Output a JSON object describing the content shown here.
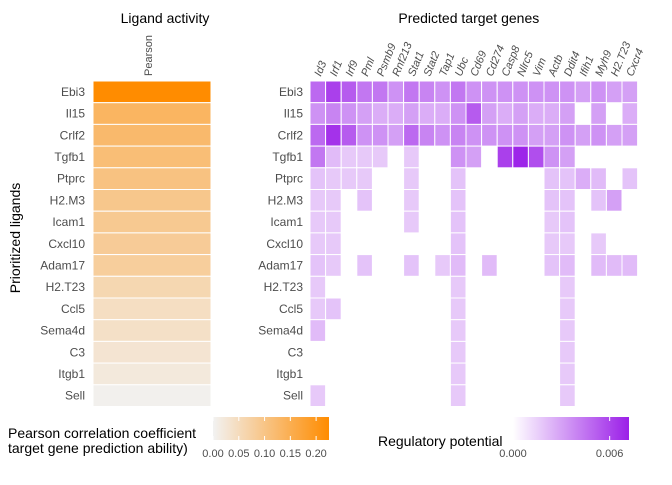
{
  "chart_data": [
    {
      "type": "heatmap",
      "title": "Ligand activity",
      "column_label": "Pearson",
      "ylabel": "Prioritized ligands",
      "rows": [
        "Ebi3",
        "Il15",
        "Crlf2",
        "Tgfb1",
        "Ptprc",
        "H2.M3",
        "Icam1",
        "Cxcl10",
        "Adam17",
        "H2.T23",
        "Ccl5",
        "Sema4d",
        "C3",
        "Itgb1",
        "Sell"
      ],
      "values": [
        0.225,
        0.135,
        0.125,
        0.115,
        0.105,
        0.095,
        0.09,
        0.085,
        0.08,
        0.06,
        0.045,
        0.04,
        0.03,
        0.02,
        0.005
      ],
      "legend": {
        "title": "Pearson correlation coefficient\ntarget gene prediction ability)",
        "ticks": [
          0.0,
          0.05,
          0.1,
          0.15,
          0.2
        ],
        "tick_labels": [
          "0.00",
          "0.05",
          "0.10",
          "0.15",
          "0.20"
        ],
        "range": [
          0.0,
          0.225
        ],
        "color_low": "#f2f2f2",
        "color_high": "#ff8c00"
      }
    },
    {
      "type": "heatmap",
      "title": "Predicted target genes",
      "rows": [
        "Ebi3",
        "Il15",
        "Crlf2",
        "Tgfb1",
        "Ptprc",
        "H2.M3",
        "Icam1",
        "Cxcl10",
        "Adam17",
        "H2.T23",
        "Ccl5",
        "Sema4d",
        "C3",
        "Itgb1",
        "Sell"
      ],
      "columns": [
        "Id3",
        "Irf1",
        "Irf9",
        "Pml",
        "Psmb9",
        "Rnf213",
        "Stat1",
        "Stat2",
        "Tap1",
        "Ubc",
        "Cd69",
        "Cd274",
        "Casp8",
        "Nlrc5",
        "Vim",
        "Actb",
        "Ddit4",
        "Ifih1",
        "Myh9",
        "H2.T23",
        "Cxcr4"
      ],
      "matrix": [
        [
          0.0045,
          0.006,
          0.005,
          0.004,
          0.004,
          0.003,
          0.004,
          0.0035,
          0.003,
          0.004,
          0.003,
          0.003,
          0.003,
          0.003,
          0.003,
          0.003,
          0.003,
          0.0025,
          0.003,
          0.0025,
          0.0025
        ],
        [
          0.003,
          0.0035,
          0.003,
          0.0025,
          0.002,
          0.002,
          0.0025,
          0.002,
          0.002,
          0.003,
          0.005,
          0.0025,
          0.002,
          0.0025,
          0.002,
          0.002,
          0.0025,
          0,
          0.0025,
          0,
          0.002
        ],
        [
          0.0045,
          0.0065,
          0.005,
          0.003,
          0.003,
          0.0025,
          0.0045,
          0.0035,
          0.003,
          0.0035,
          0.003,
          0.003,
          0.003,
          0.003,
          0.0025,
          0.0025,
          0.003,
          0.0025,
          0.003,
          0.0025,
          0.0025
        ],
        [
          0.004,
          0.0015,
          0.001,
          0.001,
          0.001,
          0,
          0.001,
          0,
          0,
          0.003,
          0.0025,
          0,
          0.006,
          0.007,
          0.0055,
          0.003,
          0.0025,
          0,
          0,
          0,
          0
        ],
        [
          0.0012,
          0.001,
          0.001,
          0.001,
          0,
          0,
          0.001,
          0,
          0,
          0.0012,
          0,
          0,
          0,
          0,
          0,
          0.0012,
          0.0012,
          0.002,
          0.0015,
          0,
          0.0012
        ],
        [
          0.001,
          0.001,
          0,
          0.0012,
          0,
          0,
          0.001,
          0,
          0,
          0.0012,
          0,
          0,
          0,
          0,
          0,
          0.0012,
          0.0012,
          0,
          0.0012,
          0.0025,
          0
        ],
        [
          0.001,
          0.001,
          0,
          0,
          0,
          0,
          0.001,
          0,
          0,
          0.0012,
          0,
          0,
          0,
          0,
          0,
          0.001,
          0.0012,
          0,
          0,
          0,
          0
        ],
        [
          0.001,
          0.001,
          0,
          0,
          0,
          0,
          0,
          0,
          0,
          0.0012,
          0,
          0,
          0,
          0,
          0,
          0.001,
          0.001,
          0,
          0.001,
          0,
          0
        ],
        [
          0.0012,
          0.001,
          0,
          0.0012,
          0,
          0,
          0.0012,
          0,
          0.001,
          0.0015,
          0,
          0.0015,
          0,
          0,
          0,
          0.0012,
          0.0015,
          0,
          0.0015,
          0.0015,
          0.0015
        ],
        [
          0.001,
          0,
          0,
          0,
          0,
          0,
          0,
          0,
          0,
          0.001,
          0,
          0,
          0,
          0,
          0,
          0,
          0.001,
          0,
          0,
          0,
          0
        ],
        [
          0.001,
          0.0012,
          0,
          0,
          0,
          0,
          0,
          0,
          0,
          0.001,
          0,
          0,
          0,
          0,
          0,
          0,
          0.001,
          0,
          0,
          0,
          0
        ],
        [
          0.0015,
          0,
          0,
          0,
          0,
          0,
          0,
          0,
          0,
          0.001,
          0,
          0,
          0,
          0,
          0,
          0,
          0.001,
          0,
          0,
          0,
          0
        ],
        [
          0,
          0,
          0,
          0,
          0,
          0,
          0,
          0,
          0,
          0.001,
          0,
          0,
          0,
          0,
          0,
          0,
          0.001,
          0,
          0,
          0,
          0
        ],
        [
          0,
          0,
          0,
          0,
          0,
          0,
          0,
          0,
          0,
          0.001,
          0,
          0,
          0,
          0,
          0,
          0,
          0.001,
          0,
          0,
          0,
          0
        ],
        [
          0.001,
          0,
          0,
          0,
          0,
          0,
          0,
          0,
          0,
          0.001,
          0,
          0,
          0,
          0,
          0,
          0,
          0.001,
          0,
          0,
          0,
          0
        ]
      ],
      "legend": {
        "title": "Regulatory potential",
        "ticks": [
          0.0,
          0.006
        ],
        "tick_labels": [
          "0.000",
          "0.006"
        ],
        "range": [
          0.0,
          0.0072
        ],
        "color_low": "#ffffff",
        "color_high": "#9b1fe8"
      }
    }
  ]
}
